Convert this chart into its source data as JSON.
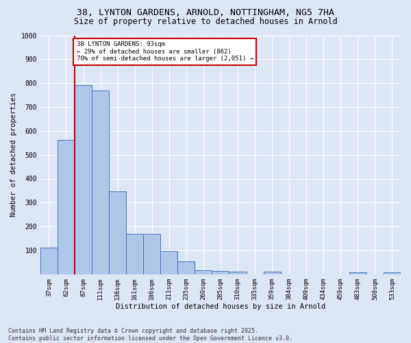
{
  "title_line1": "38, LYNTON GARDENS, ARNOLD, NOTTINGHAM, NG5 7HA",
  "title_line2": "Size of property relative to detached houses in Arnold",
  "xlabel": "Distribution of detached houses by size in Arnold",
  "ylabel": "Number of detached properties",
  "categories": [
    "37sqm",
    "62sqm",
    "87sqm",
    "111sqm",
    "136sqm",
    "161sqm",
    "186sqm",
    "211sqm",
    "235sqm",
    "260sqm",
    "285sqm",
    "310sqm",
    "335sqm",
    "359sqm",
    "384sqm",
    "409sqm",
    "434sqm",
    "459sqm",
    "483sqm",
    "508sqm",
    "533sqm"
  ],
  "values": [
    112,
    562,
    793,
    770,
    348,
    168,
    168,
    98,
    55,
    18,
    13,
    12,
    0,
    10,
    0,
    0,
    0,
    0,
    7,
    0,
    7
  ],
  "bar_color": "#aec6e8",
  "bar_edge_color": "#4472c4",
  "background_color": "#dce6f5",
  "grid_color": "#ffffff",
  "property_line_color": "#cc0000",
  "annotation_text": "38 LYNTON GARDENS: 93sqm\n← 29% of detached houses are smaller (862)\n70% of semi-detached houses are larger (2,051) →",
  "annotation_box_color": "#cc0000",
  "annotation_facecolor": "#ffffff",
  "ylim": [
    0,
    1000
  ],
  "yticks": [
    0,
    100,
    200,
    300,
    400,
    500,
    600,
    700,
    800,
    900,
    1000
  ],
  "footer_line1": "Contains HM Land Registry data © Crown copyright and database right 2025.",
  "footer_line2": "Contains public sector information licensed under the Open Government Licence v3.0."
}
